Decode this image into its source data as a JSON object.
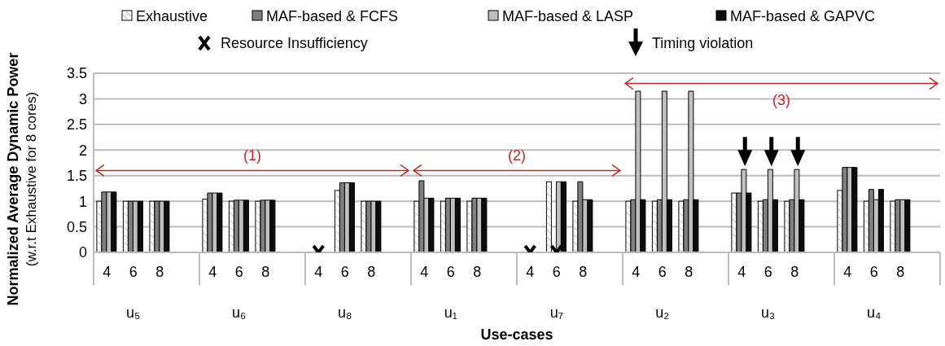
{
  "chart_data": {
    "type": "bar",
    "xlabel": "Use-cases",
    "ylabel": "Normalized Average Dynamic Power\n(w.r.t Exhaustive for 8 cores)",
    "categories": [
      "4",
      "6",
      "8",
      "4",
      "6",
      "8",
      "4",
      "6",
      "8",
      "4",
      "6",
      "8",
      "4",
      "6",
      "8",
      "4",
      "6",
      "8",
      "4",
      "6",
      "8",
      "4",
      "6",
      "8"
    ],
    "annotations": [
      "u₅",
      "u₆",
      "u₈",
      "u₁",
      "u₇",
      "u₂",
      "u₃",
      "u₄",
      "(1)",
      "(2)",
      "(3)"
    ],
    "series": [
      {
        "name": "Exhaustive",
        "color": "#ffffff",
        "values": [
          1.0,
          1.0,
          1.0,
          1.04,
          1.0,
          1.0,
          null,
          1.21,
          1.0,
          1.0,
          1.0,
          1.0,
          null,
          1.38,
          1.0,
          1.0,
          1.0,
          1.0,
          1.16,
          1.0,
          1.0,
          1.21,
          1.0,
          1.0
        ]
      },
      {
        "name": "MAF-based & FCFS",
        "color": "#7f7f7f",
        "values": [
          1.18,
          1.0,
          1.0,
          1.16,
          1.02,
          1.02,
          null,
          1.36,
          1.0,
          1.4,
          1.06,
          1.06,
          null,
          null,
          1.38,
          1.03,
          1.03,
          1.03,
          1.16,
          1.03,
          1.03,
          1.66,
          1.23,
          1.03
        ]
      },
      {
        "name": "MAF-based & LASP",
        "color": "#bfbfbf",
        "values": [
          1.18,
          1.0,
          1.0,
          1.16,
          1.02,
          1.02,
          null,
          1.36,
          1.0,
          1.06,
          1.06,
          1.06,
          null,
          1.38,
          1.03,
          3.15,
          3.15,
          3.15,
          1.62,
          1.62,
          1.62,
          1.66,
          1.03,
          1.03
        ]
      },
      {
        "name": "MAF-based & GAPVC",
        "color": "#0d0d0d",
        "values": [
          1.18,
          1.0,
          1.0,
          1.16,
          1.02,
          1.02,
          null,
          1.36,
          1.0,
          1.06,
          1.06,
          1.06,
          null,
          1.38,
          1.03,
          1.03,
          1.03,
          1.03,
          1.16,
          1.03,
          1.03,
          1.66,
          1.23,
          1.03
        ]
      },
      {
        "name": "Resource Insufficiency",
        "type": "scatter",
        "marker": "cross",
        "color": "#000000",
        "values": [
          null,
          null,
          null,
          null,
          null,
          null,
          0,
          null,
          null,
          null,
          null,
          null,
          0,
          0,
          null,
          null,
          null,
          null,
          null,
          null,
          null,
          null,
          null,
          null
        ]
      },
      {
        "name": "Timing violation",
        "type": "scatter",
        "color": "#000000",
        "values": [
          null,
          null,
          null,
          null,
          null,
          null,
          null,
          null,
          null,
          null,
          null,
          null,
          null,
          null,
          null,
          null,
          null,
          null,
          1.97,
          1.97,
          1.97,
          null,
          null,
          null
        ]
      }
    ],
    "ylim": [
      0,
      3.5
    ],
    "yticks": [
      0,
      0.5,
      1,
      1.5,
      2,
      2.5,
      3,
      3.5
    ],
    "grid": "y",
    "legend": "top"
  }
}
